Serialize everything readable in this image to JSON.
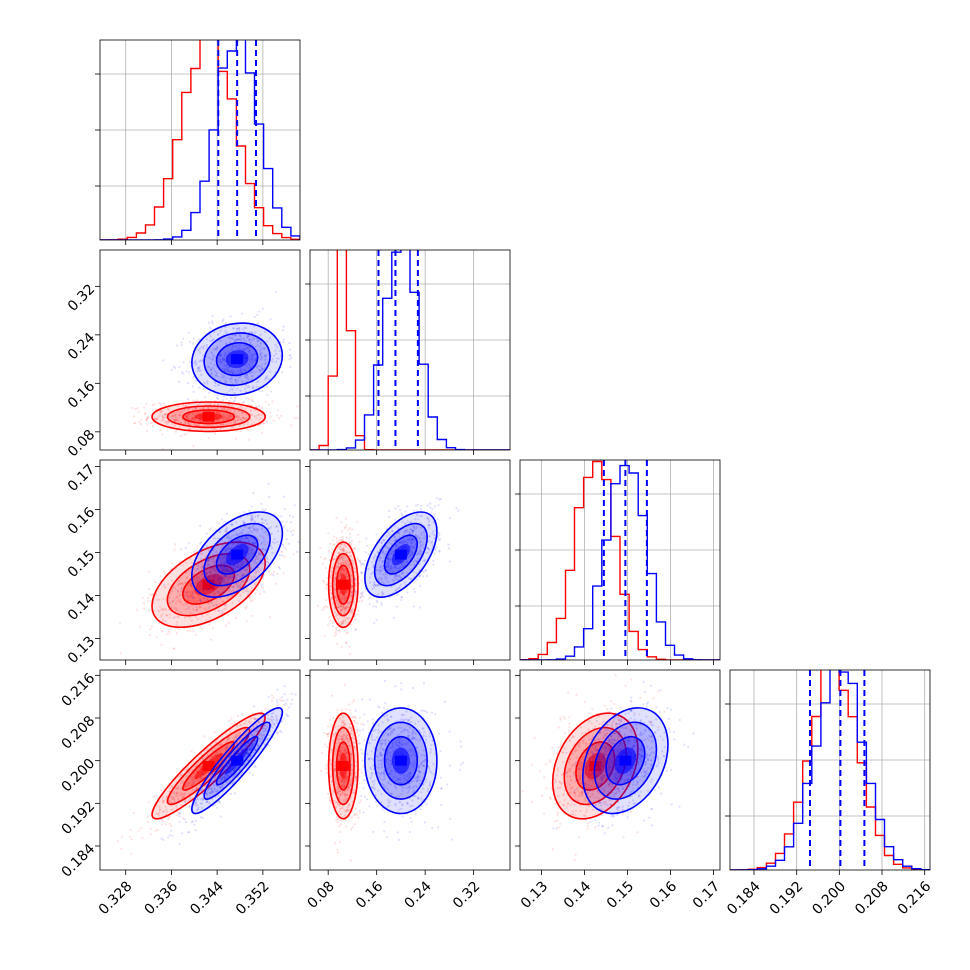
{
  "colors": {
    "series_a": "#ff0000",
    "series_b": "#0000ff",
    "grid": "#b0b0b0"
  },
  "chart_data": {
    "type": "corner",
    "grid": true,
    "series": [
      {
        "color": "#ff0000",
        "means": [
          0.3425,
          0.105,
          0.1425,
          0.199
        ],
        "sigmas": [
          0.0045,
          0.011,
          0.0045,
          0.0045
        ],
        "corr": [
          [
            1,
            0,
            0.5,
            0.92
          ],
          [
            0,
            1,
            0,
            0
          ],
          [
            0.5,
            0,
            1,
            0.3
          ],
          [
            0.92,
            0,
            0.3,
            1
          ]
        ]
      },
      {
        "color": "#0000ff",
        "means": [
          0.3475,
          0.2,
          0.1495,
          0.2
        ],
        "sigmas": [
          0.0036,
          0.027,
          0.0045,
          0.0045
        ],
        "corr": [
          [
            1,
            0.1,
            0.5,
            0.92
          ],
          [
            0.1,
            1,
            0.55,
            0
          ],
          [
            0.5,
            0.55,
            1,
            0.3
          ],
          [
            0.92,
            0,
            0.3,
            1
          ]
        ]
      }
    ],
    "quantile_lines": {
      "color": "#0000ff",
      "values": [
        [
          0.3442,
          0.3475,
          0.3508
        ],
        [
          0.163,
          0.191,
          0.228
        ],
        [
          0.1445,
          0.1495,
          0.1545
        ],
        [
          0.1945,
          0.2002,
          0.2047
        ]
      ]
    },
    "ranges": [
      [
        0.3235,
        0.3585
      ],
      [
        0.05,
        0.38
      ],
      [
        0.125,
        0.1715
      ],
      [
        0.1795,
        0.217
      ]
    ],
    "ticks": [
      {
        "values": [
          0.328,
          0.336,
          0.344,
          0.352
        ],
        "labels": [
          "0.328",
          "0.336",
          "0.344",
          "0.352"
        ]
      },
      {
        "values": [
          0.08,
          0.16,
          0.24,
          0.32
        ],
        "labels": [
          "0.08",
          "0.16",
          "0.24",
          "0.32"
        ]
      },
      {
        "values": [
          0.13,
          0.14,
          0.15,
          0.16,
          0.17
        ],
        "labels": [
          "0.13",
          "0.14",
          "0.15",
          "0.16",
          "0.17"
        ]
      },
      {
        "values": [
          0.184,
          0.192,
          0.2,
          0.208,
          0.216
        ],
        "labels": [
          "0.184",
          "0.192",
          "0.200",
          "0.208",
          "0.216"
        ]
      }
    ]
  }
}
